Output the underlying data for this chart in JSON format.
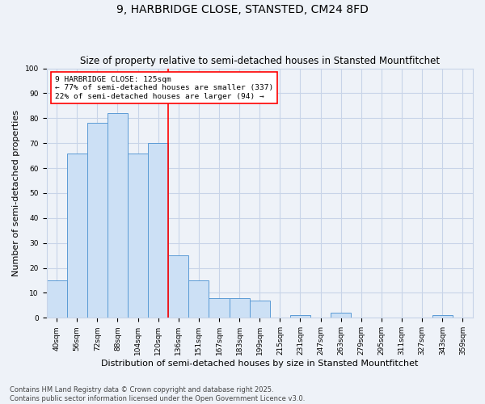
{
  "title": "9, HARBRIDGE CLOSE, STANSTED, CM24 8FD",
  "subtitle": "Size of property relative to semi-detached houses in Stansted Mountfitchet",
  "xlabel": "Distribution of semi-detached houses by size in Stansted Mountfitchet",
  "ylabel": "Number of semi-detached properties",
  "footer": "Contains HM Land Registry data © Crown copyright and database right 2025.\nContains public sector information licensed under the Open Government Licence v3.0.",
  "categories": [
    "40sqm",
    "56sqm",
    "72sqm",
    "88sqm",
    "104sqm",
    "120sqm",
    "136sqm",
    "151sqm",
    "167sqm",
    "183sqm",
    "199sqm",
    "215sqm",
    "231sqm",
    "247sqm",
    "263sqm",
    "279sqm",
    "295sqm",
    "311sqm",
    "327sqm",
    "343sqm",
    "359sqm"
  ],
  "values": [
    15,
    66,
    78,
    82,
    66,
    70,
    25,
    15,
    8,
    8,
    7,
    0,
    1,
    0,
    2,
    0,
    0,
    0,
    0,
    1,
    0
  ],
  "bar_color": "#cce0f5",
  "bar_edge_color": "#5b9bd5",
  "vline_x": 5.5,
  "vline_color": "red",
  "annotation_box_text": "9 HARBRIDGE CLOSE: 125sqm\n← 77% of semi-detached houses are smaller (337)\n22% of semi-detached houses are larger (94) →",
  "annotation_box_color": "red",
  "annotation_box_fill": "white",
  "ylim": [
    0,
    100
  ],
  "yticks": [
    0,
    10,
    20,
    30,
    40,
    50,
    60,
    70,
    80,
    90,
    100
  ],
  "grid_color": "#c8d4e8",
  "bg_color": "#eef2f8",
  "title_fontsize": 10,
  "subtitle_fontsize": 8.5,
  "tick_fontsize": 6.5,
  "ylabel_fontsize": 8,
  "xlabel_fontsize": 8,
  "footer_fontsize": 6
}
